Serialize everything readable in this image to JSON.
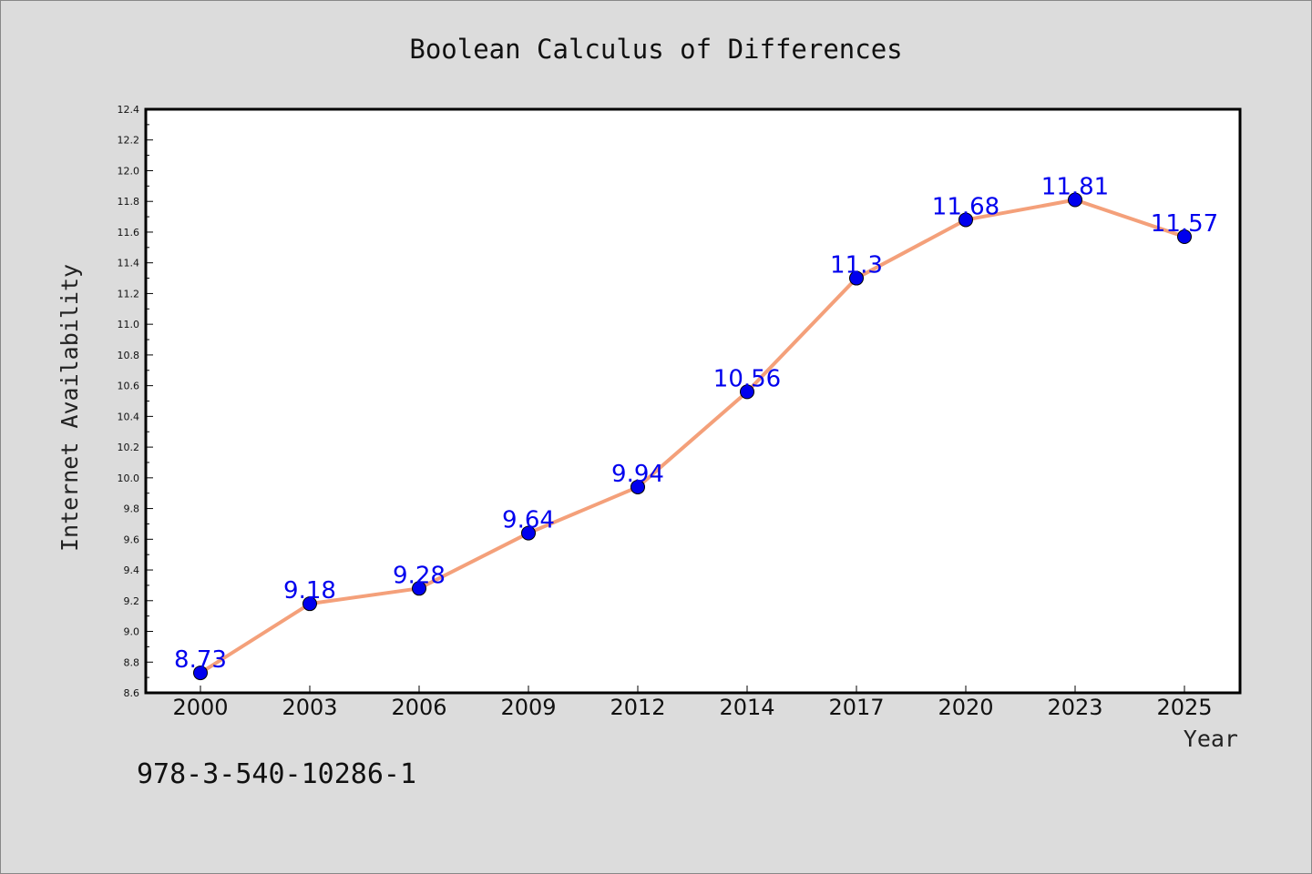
{
  "chart_data": {
    "type": "line",
    "title": "Boolean Calculus of Differences",
    "xlabel": "Year",
    "ylabel": "Internet Availability",
    "categories": [
      "2000",
      "2003",
      "2006",
      "2009",
      "2012",
      "2014",
      "2017",
      "2020",
      "2023",
      "2025"
    ],
    "values": [
      8.73,
      9.18,
      9.28,
      9.64,
      9.94,
      10.56,
      11.3,
      11.68,
      11.81,
      11.57
    ],
    "data_labels": [
      "8.73",
      "9.18",
      "9.28",
      "9.64",
      "9.94",
      "10.56",
      "11.3",
      "11.68",
      "11.81",
      "11.57"
    ],
    "ylim": [
      8.6,
      12.4
    ],
    "y_ticks": [
      "8.6",
      "8.8",
      "9.0",
      "9.2",
      "9.4",
      "9.6",
      "9.8",
      "10.0",
      "10.2",
      "10.4",
      "10.6",
      "10.8",
      "11.0",
      "11.2",
      "11.4",
      "11.6",
      "11.8",
      "12.0",
      "12.2",
      "12.4"
    ],
    "grid": false,
    "legend": "none",
    "colors": {
      "line": "#f4a07a",
      "marker": "#0000ee",
      "label": "#0000ee",
      "plot_bg": "#ffffff",
      "page_bg": "#dcdcdc"
    }
  },
  "footer": {
    "code": "978-3-540-10286-1"
  }
}
